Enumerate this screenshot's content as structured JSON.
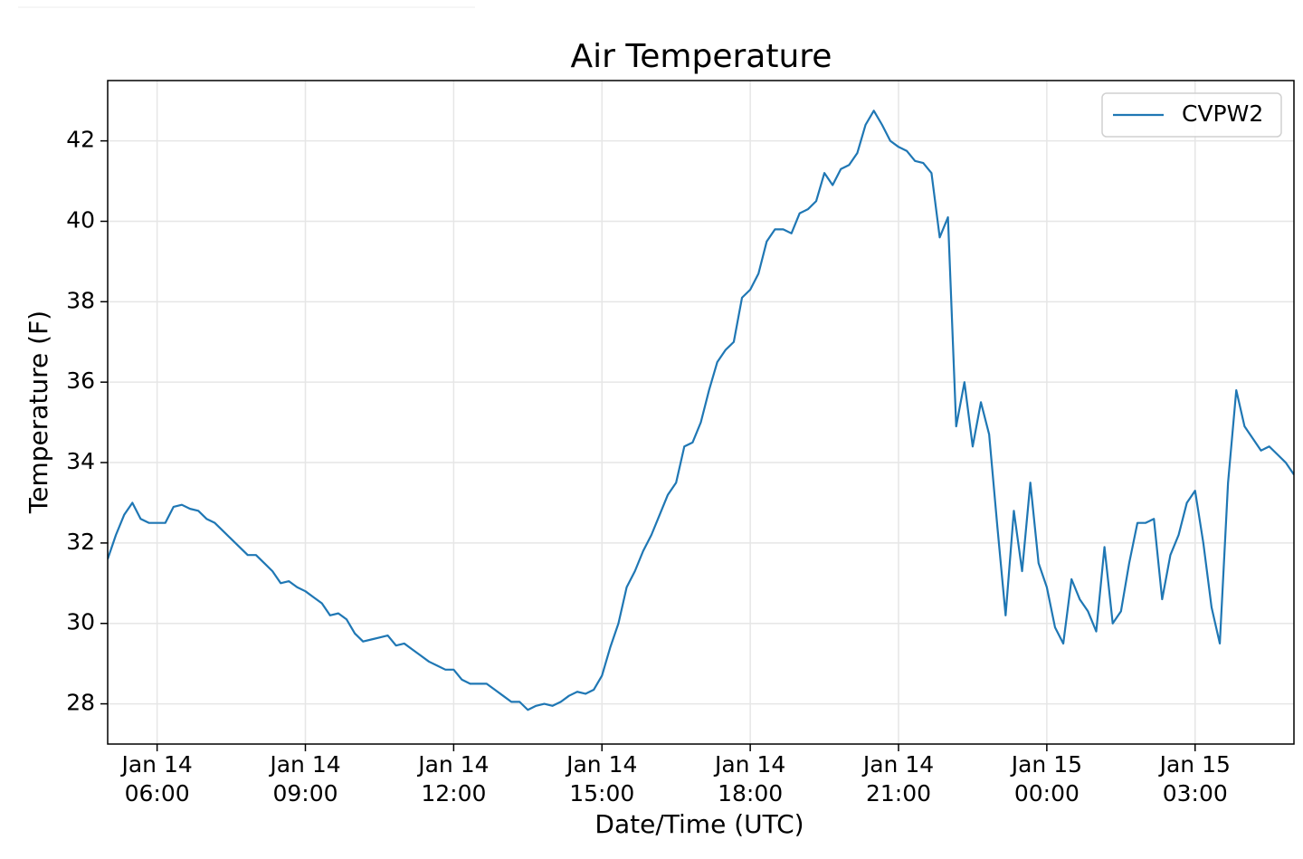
{
  "chart_data": {
    "type": "line",
    "title": "Air Temperature",
    "xlabel": "Date/Time (UTC)",
    "ylabel": "Temperature (F)",
    "x": [
      "Jan 14 05:00",
      "Jan 14 05:10",
      "Jan 14 05:20",
      "Jan 14 05:30",
      "Jan 14 05:40",
      "Jan 14 05:50",
      "Jan 14 06:00",
      "Jan 14 06:10",
      "Jan 14 06:20",
      "Jan 14 06:30",
      "Jan 14 06:40",
      "Jan 14 06:50",
      "Jan 14 07:00",
      "Jan 14 07:10",
      "Jan 14 07:20",
      "Jan 14 07:30",
      "Jan 14 07:40",
      "Jan 14 07:50",
      "Jan 14 08:00",
      "Jan 14 08:10",
      "Jan 14 08:20",
      "Jan 14 08:30",
      "Jan 14 08:40",
      "Jan 14 08:50",
      "Jan 14 09:00",
      "Jan 14 09:10",
      "Jan 14 09:20",
      "Jan 14 09:30",
      "Jan 14 09:40",
      "Jan 14 09:50",
      "Jan 14 10:00",
      "Jan 14 10:10",
      "Jan 14 10:20",
      "Jan 14 10:30",
      "Jan 14 10:40",
      "Jan 14 10:50",
      "Jan 14 11:00",
      "Jan 14 11:10",
      "Jan 14 11:20",
      "Jan 14 11:30",
      "Jan 14 11:40",
      "Jan 14 11:50",
      "Jan 14 12:00",
      "Jan 14 12:10",
      "Jan 14 12:20",
      "Jan 14 12:30",
      "Jan 14 12:40",
      "Jan 14 12:50",
      "Jan 14 13:00",
      "Jan 14 13:10",
      "Jan 14 13:20",
      "Jan 14 13:30",
      "Jan 14 13:40",
      "Jan 14 13:50",
      "Jan 14 14:00",
      "Jan 14 14:10",
      "Jan 14 14:20",
      "Jan 14 14:30",
      "Jan 14 14:40",
      "Jan 14 14:50",
      "Jan 14 15:00",
      "Jan 14 15:10",
      "Jan 14 15:20",
      "Jan 14 15:30",
      "Jan 14 15:40",
      "Jan 14 15:50",
      "Jan 14 16:00",
      "Jan 14 16:10",
      "Jan 14 16:20",
      "Jan 14 16:30",
      "Jan 14 16:40",
      "Jan 14 16:50",
      "Jan 14 17:00",
      "Jan 14 17:10",
      "Jan 14 17:20",
      "Jan 14 17:30",
      "Jan 14 17:40",
      "Jan 14 17:50",
      "Jan 14 18:00",
      "Jan 14 18:10",
      "Jan 14 18:20",
      "Jan 14 18:30",
      "Jan 14 18:40",
      "Jan 14 18:50",
      "Jan 14 19:00",
      "Jan 14 19:10",
      "Jan 14 19:20",
      "Jan 14 19:30",
      "Jan 14 19:40",
      "Jan 14 19:50",
      "Jan 14 20:00",
      "Jan 14 20:10",
      "Jan 14 20:20",
      "Jan 14 20:30",
      "Jan 14 20:40",
      "Jan 14 20:50",
      "Jan 14 21:00",
      "Jan 14 21:10",
      "Jan 14 21:20",
      "Jan 14 21:30",
      "Jan 14 21:40",
      "Jan 14 21:50",
      "Jan 14 22:00",
      "Jan 14 22:10",
      "Jan 14 22:20",
      "Jan 14 22:30",
      "Jan 14 22:40",
      "Jan 14 22:50",
      "Jan 14 23:00",
      "Jan 14 23:10",
      "Jan 14 23:20",
      "Jan 14 23:30",
      "Jan 14 23:40",
      "Jan 14 23:50",
      "Jan 15 00:00",
      "Jan 15 00:10",
      "Jan 15 00:20",
      "Jan 15 00:30",
      "Jan 15 00:40",
      "Jan 15 00:50",
      "Jan 15 01:00",
      "Jan 15 01:10",
      "Jan 15 01:20",
      "Jan 15 01:30",
      "Jan 15 01:40",
      "Jan 15 01:50",
      "Jan 15 02:00",
      "Jan 15 02:10",
      "Jan 15 02:20",
      "Jan 15 02:30",
      "Jan 15 02:40",
      "Jan 15 02:50",
      "Jan 15 03:00",
      "Jan 15 03:10",
      "Jan 15 03:20",
      "Jan 15 03:30",
      "Jan 15 03:40",
      "Jan 15 03:50",
      "Jan 15 04:00",
      "Jan 15 04:10",
      "Jan 15 04:20",
      "Jan 15 04:30",
      "Jan 15 04:40",
      "Jan 15 04:50",
      "Jan 15 05:00"
    ],
    "series": [
      {
        "name": "CVPW2",
        "color": "#1f77b4",
        "values": [
          31.6,
          32.2,
          32.7,
          33.0,
          32.6,
          32.5,
          32.5,
          32.5,
          32.9,
          32.95,
          32.85,
          32.8,
          32.6,
          32.5,
          32.3,
          32.1,
          31.9,
          31.7,
          31.7,
          31.5,
          31.3,
          31.0,
          31.05,
          30.9,
          30.8,
          30.65,
          30.5,
          30.2,
          30.25,
          30.1,
          29.75,
          29.55,
          29.6,
          29.65,
          29.7,
          29.45,
          29.5,
          29.35,
          29.2,
          29.05,
          28.95,
          28.85,
          28.85,
          28.6,
          28.5,
          28.5,
          28.5,
          28.35,
          28.2,
          28.05,
          28.05,
          27.85,
          27.95,
          28.0,
          27.95,
          28.05,
          28.2,
          28.3,
          28.25,
          28.35,
          28.7,
          29.4,
          30.0,
          30.9,
          31.3,
          31.8,
          32.2,
          32.7,
          33.2,
          33.5,
          34.4,
          34.5,
          35.0,
          35.8,
          36.5,
          36.8,
          37.0,
          38.1,
          38.3,
          38.7,
          39.5,
          39.8,
          39.8,
          39.7,
          40.2,
          40.3,
          40.5,
          41.2,
          40.9,
          41.3,
          41.4,
          41.7,
          42.4,
          42.75,
          42.4,
          42.0,
          41.85,
          41.75,
          41.5,
          41.45,
          41.2,
          39.6,
          40.1,
          34.9,
          36.0,
          34.4,
          35.5,
          34.7,
          32.4,
          30.2,
          32.8,
          31.3,
          33.5,
          31.5,
          30.9,
          29.9,
          29.5,
          31.1,
          30.6,
          30.3,
          29.8,
          31.9,
          30.0,
          30.3,
          31.5,
          32.5,
          32.5,
          32.6,
          30.6,
          31.7,
          32.2,
          33.0,
          33.3,
          32.0,
          30.4,
          29.5,
          33.5,
          35.8,
          34.9,
          34.6,
          34.3,
          34.4,
          34.2,
          34.0,
          33.7
        ]
      }
    ],
    "xlim": [
      "Jan 14 05:00",
      "Jan 15 05:00"
    ],
    "xticks": [
      {
        "value": "Jan 14 06:00",
        "label": "Jan 14\n06:00"
      },
      {
        "value": "Jan 14 09:00",
        "label": "Jan 14\n09:00"
      },
      {
        "value": "Jan 14 12:00",
        "label": "Jan 14\n12:00"
      },
      {
        "value": "Jan 14 15:00",
        "label": "Jan 14\n15:00"
      },
      {
        "value": "Jan 14 18:00",
        "label": "Jan 14\n18:00"
      },
      {
        "value": "Jan 14 21:00",
        "label": "Jan 14\n21:00"
      },
      {
        "value": "Jan 15 00:00",
        "label": "Jan 15\n00:00"
      },
      {
        "value": "Jan 15 03:00",
        "label": "Jan 15\n03:00"
      }
    ],
    "ylim": [
      27,
      43.5
    ],
    "yticks": [
      28,
      30,
      32,
      34,
      36,
      38,
      40,
      42
    ],
    "grid": true,
    "legend": "upper right"
  }
}
